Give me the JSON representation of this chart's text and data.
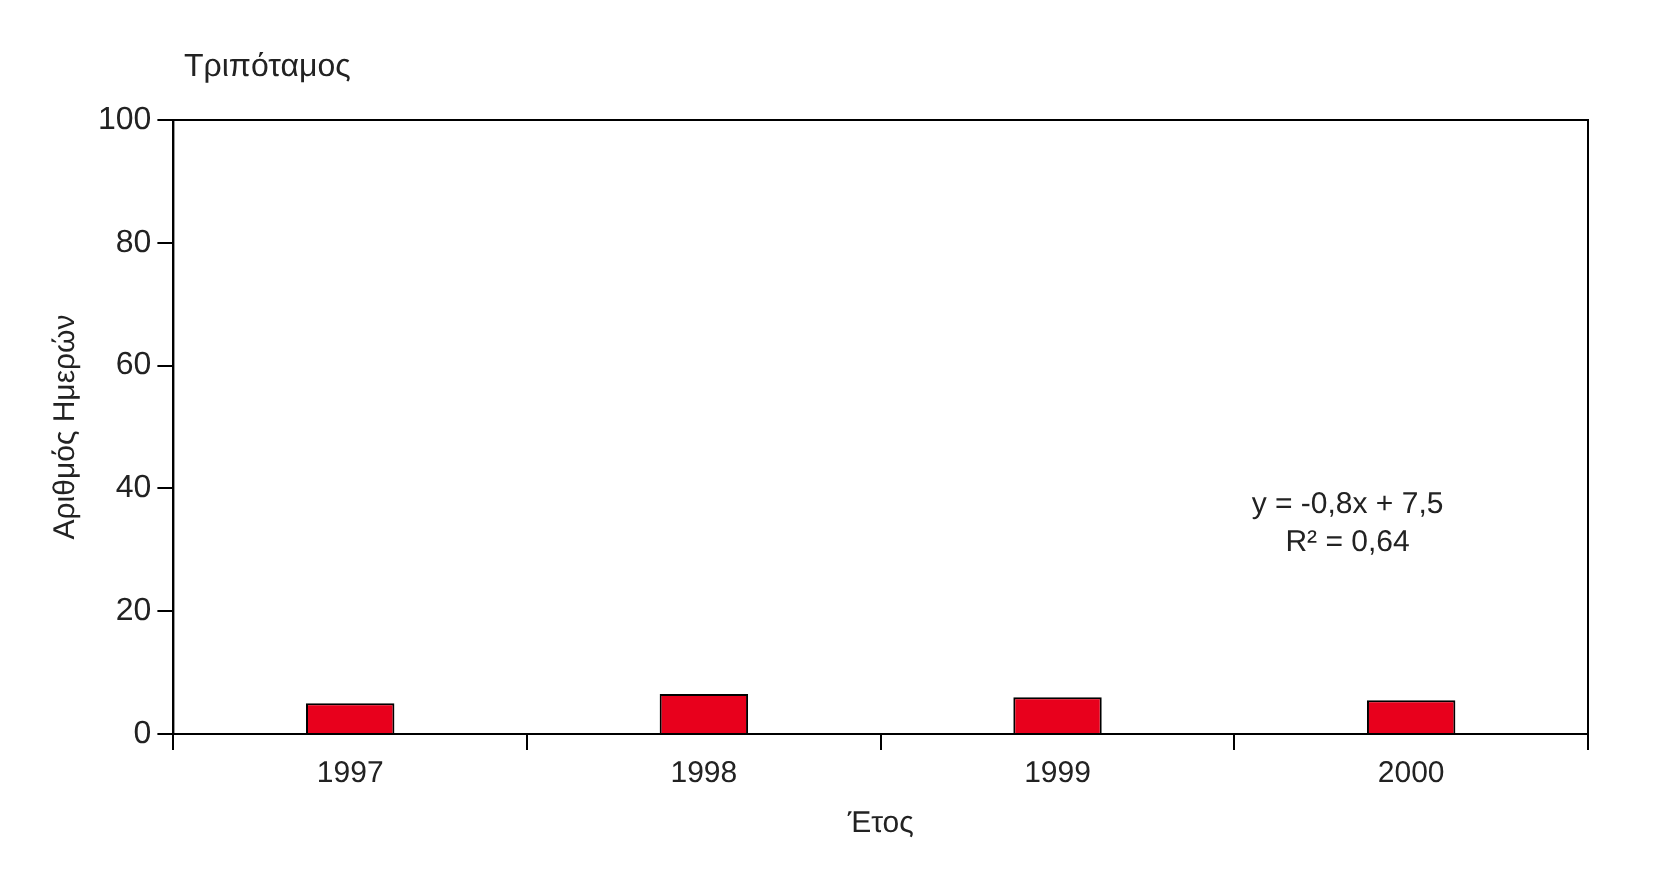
{
  "chart_data": {
    "type": "bar",
    "title": "Τριπόταμος",
    "xlabel": "Έτος",
    "ylabel": "Αριθμός Ημερών",
    "categories": [
      "1997",
      "1998",
      "1999",
      "2000"
    ],
    "values": [
      5,
      6.5,
      6,
      5.5
    ],
    "color": "#e8001c",
    "ylim": [
      0,
      100
    ],
    "yticks": [
      0,
      20,
      40,
      60,
      80,
      100
    ],
    "grid": false,
    "legend": false,
    "annotations": [
      "y = -0,8x + 7,5\nR² = 0,64"
    ]
  }
}
